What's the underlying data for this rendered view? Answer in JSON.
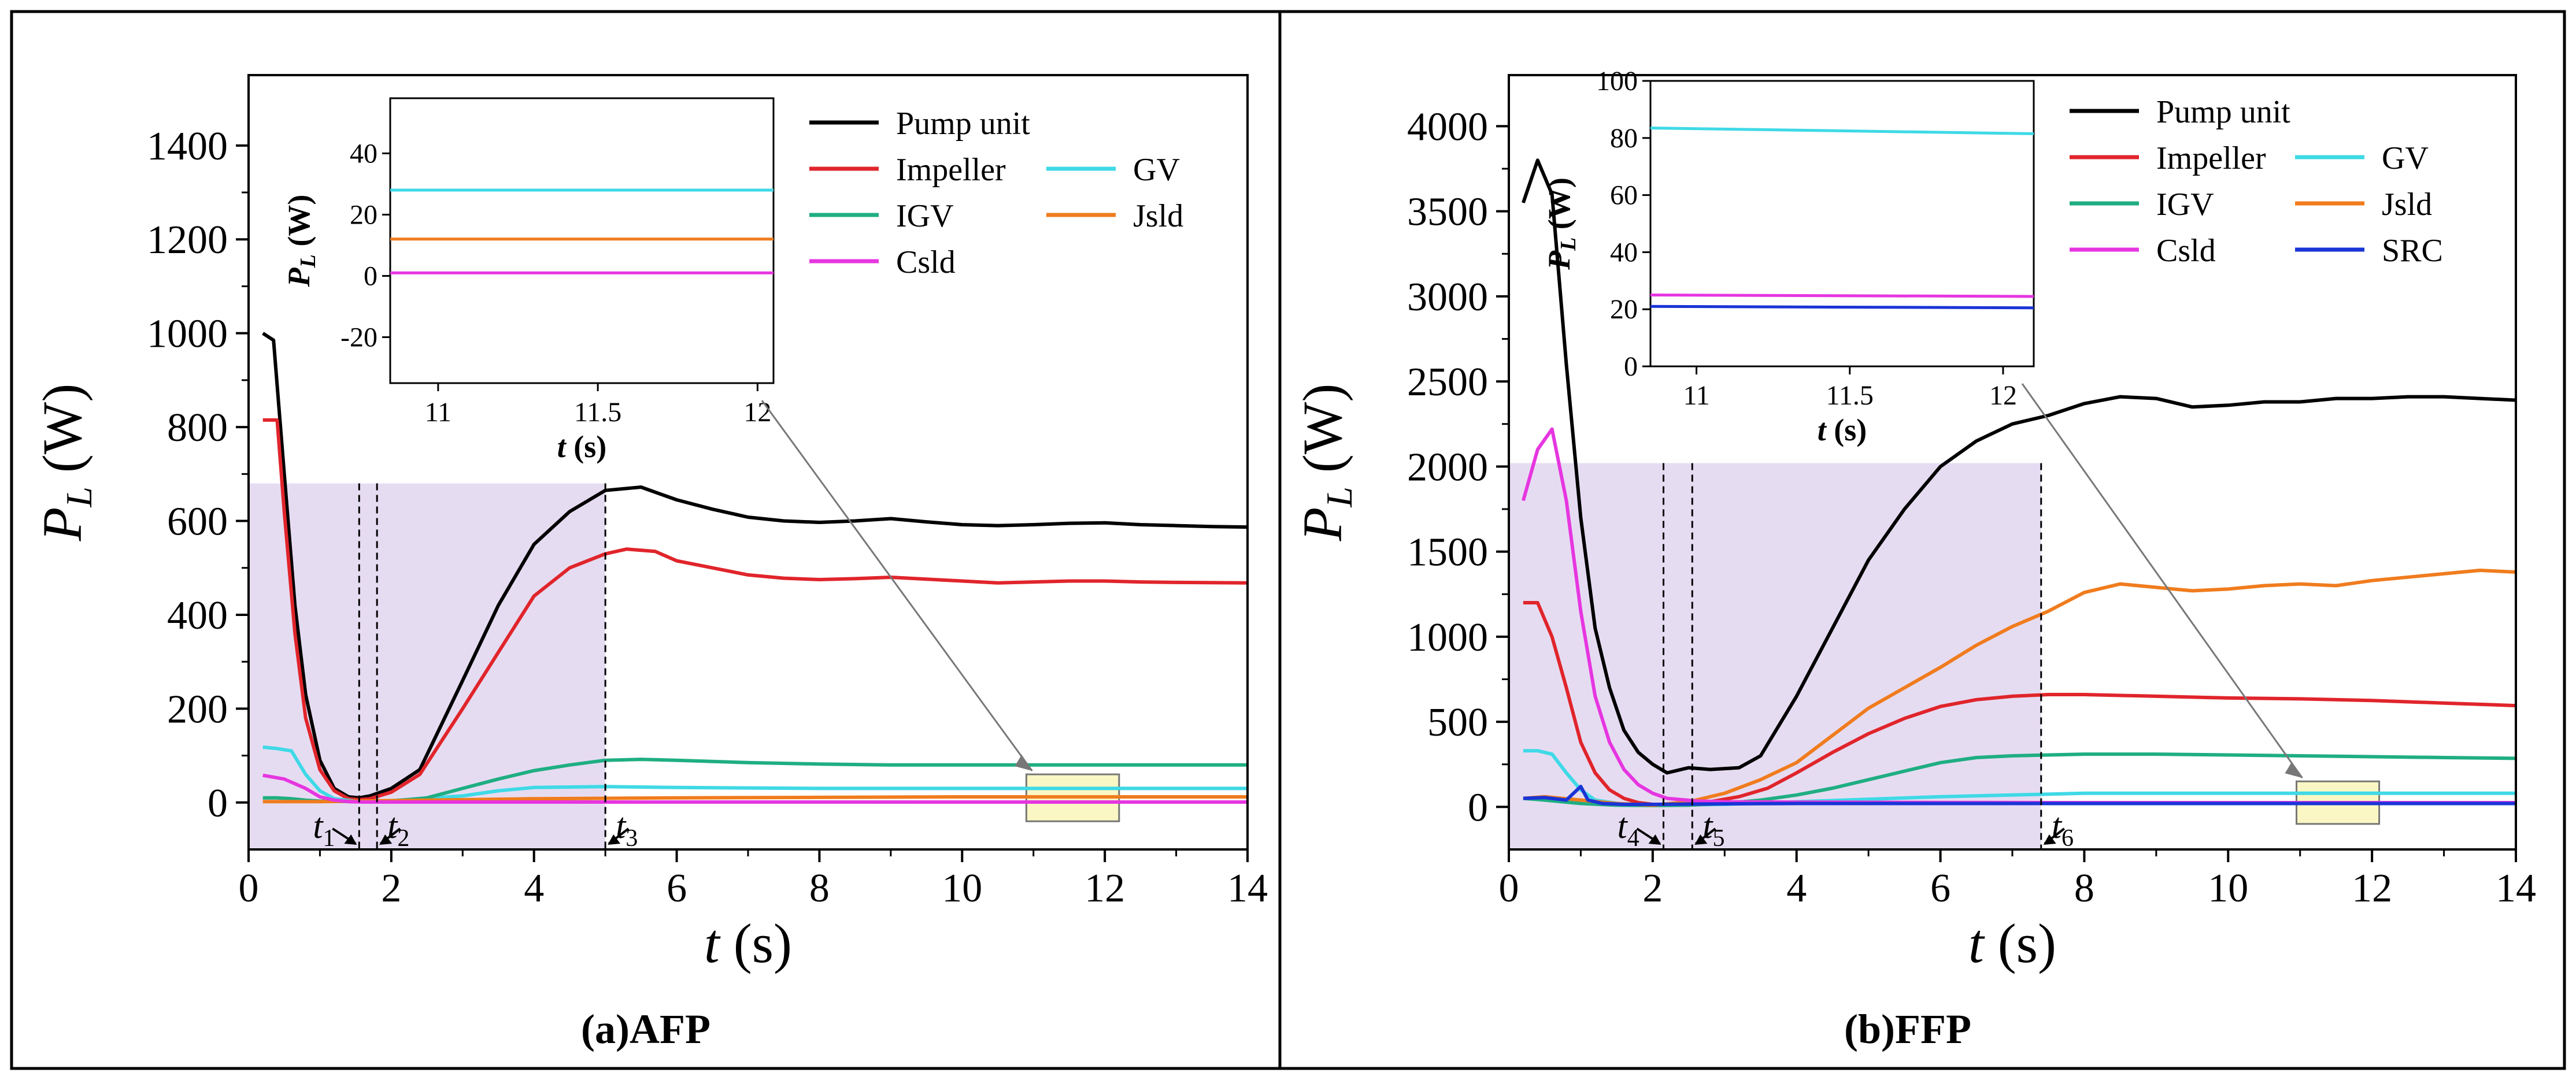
{
  "figure": {
    "panels": [
      "(a)AFP",
      "(b)FFP"
    ]
  },
  "colors": {
    "Pump unit": "#000000",
    "Impeller": "#e0252b",
    "GV": "#3fd9e6",
    "IGV": "#1fae82",
    "Jsld": "#f07c1e",
    "Csld": "#e636e0",
    "SRC": "#1a34d6",
    "shade": "#e6dcf2",
    "zoom_box": "#faf7c4"
  },
  "chart_data": [
    {
      "type": "line",
      "caption": "(a)AFP",
      "xlabel": "t (s)",
      "ylabel": "P_L (W)",
      "xlim": [
        0,
        14
      ],
      "ylim": [
        -100,
        1550
      ],
      "xticks": [
        0,
        2,
        4,
        6,
        8,
        10,
        12,
        14
      ],
      "yticks": [
        0,
        200,
        400,
        600,
        800,
        1000,
        1200,
        1400
      ],
      "shaded_region": {
        "x": [
          0,
          5.0
        ],
        "y": [
          -100,
          680
        ]
      },
      "markers": [
        {
          "name": "t",
          "sub": "1",
          "x": 1.55
        },
        {
          "name": "t",
          "sub": "2",
          "x": 1.8
        },
        {
          "name": "t",
          "sub": "3",
          "x": 5.0
        }
      ],
      "zoom_box": {
        "x": [
          10.9,
          12.2
        ],
        "y": [
          -40,
          60
        ]
      },
      "series": [
        {
          "name": "Pump unit",
          "x": [
            0.2,
            0.35,
            0.5,
            0.65,
            0.8,
            1.0,
            1.2,
            1.4,
            1.55,
            1.7,
            2.0,
            2.4,
            3.0,
            3.5,
            4.0,
            4.5,
            5.0,
            5.5,
            6.0,
            6.5,
            7.0,
            7.5,
            8.0,
            8.5,
            9.0,
            9.5,
            10.0,
            10.5,
            11.0,
            11.5,
            12.0,
            12.5,
            13.0,
            13.5,
            14.0
          ],
          "y": [
            1000,
            985,
            700,
            420,
            230,
            90,
            30,
            12,
            10,
            14,
            30,
            70,
            260,
            420,
            550,
            620,
            665,
            672,
            645,
            625,
            608,
            600,
            597,
            600,
            605,
            598,
            592,
            590,
            592,
            595,
            596,
            592,
            590,
            588,
            587
          ]
        },
        {
          "name": "Impeller",
          "x": [
            0.2,
            0.4,
            0.5,
            0.65,
            0.8,
            1.0,
            1.2,
            1.4,
            1.55,
            1.7,
            2.0,
            2.4,
            3.0,
            3.5,
            4.0,
            4.5,
            5.0,
            5.3,
            5.7,
            6.0,
            6.5,
            7.0,
            7.5,
            8.0,
            8.5,
            9.0,
            9.5,
            10.0,
            10.5,
            11.0,
            11.5,
            12.0,
            12.5,
            13.0,
            14.0
          ],
          "y": [
            815,
            815,
            620,
            360,
            180,
            70,
            25,
            8,
            6,
            8,
            22,
            60,
            200,
            320,
            440,
            500,
            530,
            540,
            535,
            515,
            500,
            485,
            478,
            475,
            477,
            480,
            476,
            472,
            468,
            470,
            472,
            472,
            470,
            469,
            468
          ]
        },
        {
          "name": "GV",
          "x": [
            0.2,
            0.4,
            0.6,
            0.8,
            1.0,
            1.2,
            1.5,
            1.8,
            2.2,
            3.0,
            3.5,
            4.0,
            5.0,
            6.0,
            8.0,
            10.0,
            12.0,
            14.0
          ],
          "y": [
            118,
            115,
            110,
            60,
            25,
            8,
            3,
            2,
            6,
            14,
            25,
            32,
            34,
            32,
            30,
            30,
            30,
            30
          ]
        },
        {
          "name": "IGV",
          "x": [
            0.2,
            0.4,
            0.6,
            0.8,
            1.0,
            1.5,
            2.0,
            2.5,
            3.0,
            3.5,
            4.0,
            4.5,
            5.0,
            5.5,
            6.0,
            7.0,
            8.0,
            9.0,
            10.0,
            11.0,
            12.0,
            13.0,
            14.0
          ],
          "y": [
            10,
            10,
            8,
            5,
            3,
            2,
            3,
            10,
            30,
            50,
            68,
            80,
            90,
            92,
            90,
            85,
            82,
            80,
            80,
            80,
            80,
            80,
            80
          ]
        },
        {
          "name": "Jsld",
          "x": [
            0.2,
            1.0,
            2.0,
            4.0,
            6.0,
            8.0,
            10.0,
            12.0,
            14.0
          ],
          "y": [
            2,
            2,
            4,
            8,
            10,
            11,
            12,
            12,
            12
          ]
        },
        {
          "name": "Csld",
          "x": [
            0.2,
            0.5,
            0.8,
            1.0,
            1.2,
            1.4,
            1.6,
            2.0,
            4.0,
            6.0,
            8.0,
            10.0,
            12.0,
            14.0
          ],
          "y": [
            58,
            50,
            30,
            12,
            5,
            2,
            1,
            1,
            1,
            1,
            1,
            1,
            1,
            1
          ]
        }
      ],
      "legend": [
        [
          "Pump unit"
        ],
        [
          "Impeller",
          "GV"
        ],
        [
          "IGV",
          "Jsld"
        ],
        [
          "Csld"
        ]
      ],
      "inset": {
        "xlabel": "t (s)",
        "ylabel": "P_L (W)",
        "xlim": [
          10.85,
          12.05
        ],
        "ylim": [
          -35,
          58
        ],
        "xticks": [
          11.0,
          11.5,
          12.0
        ],
        "yticks": [
          -20,
          0,
          20,
          40
        ],
        "series": [
          {
            "name": "GV",
            "x": [
              10.85,
              12.05
            ],
            "y": [
              28,
              28
            ]
          },
          {
            "name": "Jsld",
            "x": [
              10.85,
              12.05
            ],
            "y": [
              12,
              12
            ]
          },
          {
            "name": "Csld",
            "x": [
              10.85,
              12.05
            ],
            "y": [
              1,
              1
            ]
          }
        ]
      }
    },
    {
      "type": "line",
      "caption": "(b)FFP",
      "xlabel": "t (s)",
      "ylabel": "P_L (W)",
      "xlim": [
        0,
        14
      ],
      "ylim": [
        -250,
        4300
      ],
      "xticks": [
        0,
        2,
        4,
        6,
        8,
        10,
        12,
        14
      ],
      "yticks": [
        0,
        500,
        1000,
        1500,
        2000,
        2500,
        3000,
        3500,
        4000
      ],
      "shaded_region": {
        "x": [
          0,
          7.4
        ],
        "y": [
          -250,
          2020
        ]
      },
      "markers": [
        {
          "name": "t",
          "sub": "4",
          "x": 2.15
        },
        {
          "name": "t",
          "sub": "5",
          "x": 2.55
        },
        {
          "name": "t",
          "sub": "6",
          "x": 7.4
        }
      ],
      "zoom_box": {
        "x": [
          10.95,
          12.1
        ],
        "y": [
          -100,
          150
        ]
      },
      "series": [
        {
          "name": "Pump unit",
          "x": [
            0.2,
            0.4,
            0.6,
            0.8,
            1.0,
            1.2,
            1.4,
            1.6,
            1.8,
            2.0,
            2.2,
            2.5,
            2.8,
            3.2,
            3.5,
            4.0,
            4.5,
            5.0,
            5.5,
            6.0,
            6.5,
            7.0,
            7.5,
            8.0,
            8.5,
            9.0,
            9.5,
            10.0,
            10.5,
            11.0,
            11.5,
            12.0,
            12.5,
            13.0,
            13.5,
            14.0
          ],
          "y": [
            3550,
            3800,
            3600,
            2600,
            1700,
            1050,
            700,
            450,
            320,
            250,
            200,
            230,
            220,
            230,
            300,
            650,
            1050,
            1450,
            1750,
            2000,
            2150,
            2250,
            2300,
            2370,
            2410,
            2400,
            2350,
            2360,
            2380,
            2380,
            2400,
            2400,
            2410,
            2410,
            2400,
            2390
          ]
        },
        {
          "name": "Impeller",
          "x": [
            0.2,
            0.4,
            0.6,
            0.8,
            1.0,
            1.2,
            1.4,
            1.6,
            1.8,
            2.0,
            2.2,
            2.5,
            2.8,
            3.2,
            3.6,
            4.0,
            4.5,
            5.0,
            5.5,
            6.0,
            6.5,
            7.0,
            7.5,
            8.0,
            9.0,
            10.0,
            11.0,
            12.0,
            13.0,
            14.0
          ],
          "y": [
            1200,
            1200,
            1000,
            700,
            380,
            200,
            100,
            50,
            25,
            15,
            10,
            15,
            30,
            60,
            110,
            200,
            320,
            430,
            520,
            590,
            630,
            650,
            660,
            660,
            650,
            640,
            635,
            625,
            610,
            595
          ]
        },
        {
          "name": "GV",
          "x": [
            0.2,
            0.4,
            0.6,
            0.8,
            1.0,
            1.2,
            1.6,
            2.0,
            3.0,
            4.0,
            6.0,
            8.0,
            10.0,
            12.0,
            14.0
          ],
          "y": [
            330,
            330,
            310,
            200,
            100,
            40,
            15,
            10,
            15,
            30,
            60,
            80,
            80,
            80,
            80
          ]
        },
        {
          "name": "IGV",
          "x": [
            0.2,
            0.5,
            1.0,
            1.5,
            2.0,
            2.5,
            3.0,
            3.5,
            4.0,
            4.5,
            5.0,
            5.5,
            6.0,
            6.5,
            7.0,
            7.5,
            8.0,
            9.0,
            10.0,
            11.0,
            12.0,
            13.0,
            14.0
          ],
          "y": [
            50,
            40,
            20,
            10,
            8,
            10,
            20,
            40,
            70,
            110,
            160,
            210,
            260,
            290,
            300,
            305,
            310,
            310,
            305,
            300,
            295,
            290,
            285
          ]
        },
        {
          "name": "Jsld",
          "x": [
            0.2,
            0.5,
            1.0,
            1.5,
            2.0,
            2.5,
            3.0,
            3.5,
            4.0,
            4.5,
            5.0,
            5.5,
            6.0,
            6.5,
            7.0,
            7.5,
            8.0,
            8.5,
            9.0,
            9.5,
            10.0,
            10.5,
            11.0,
            11.5,
            12.0,
            12.5,
            13.0,
            13.5,
            14.0
          ],
          "y": [
            50,
            60,
            40,
            20,
            10,
            30,
            80,
            160,
            260,
            420,
            580,
            700,
            820,
            950,
            1060,
            1150,
            1260,
            1310,
            1290,
            1270,
            1280,
            1300,
            1310,
            1300,
            1330,
            1350,
            1370,
            1390,
            1380
          ]
        },
        {
          "name": "Csld",
          "x": [
            0.2,
            0.4,
            0.6,
            0.8,
            1.0,
            1.2,
            1.4,
            1.6,
            1.8,
            2.0,
            2.2,
            2.6,
            3.0,
            4.0,
            6.0,
            8.0,
            10.0,
            12.0,
            14.0
          ],
          "y": [
            1800,
            2100,
            2220,
            1800,
            1150,
            650,
            380,
            220,
            130,
            80,
            50,
            35,
            30,
            28,
            26,
            25,
            25,
            25,
            25
          ]
        },
        {
          "name": "SRC",
          "x": [
            0.2,
            0.5,
            0.8,
            1.0,
            1.1,
            1.3,
            1.6,
            2.0,
            3.0,
            4.0,
            6.0,
            8.0,
            10.0,
            12.0,
            14.0
          ],
          "y": [
            50,
            55,
            40,
            120,
            40,
            20,
            15,
            15,
            18,
            20,
            20,
            20,
            20,
            20,
            20
          ]
        }
      ],
      "legend": [
        [
          "Pump unit"
        ],
        [
          "Impeller",
          "GV"
        ],
        [
          "IGV",
          "Jsld"
        ],
        [
          "Csld",
          "SRC"
        ]
      ],
      "inset": {
        "xlabel": "t (s)",
        "ylabel": "P_L (W)",
        "xlim": [
          10.85,
          12.1
        ],
        "ylim": [
          0,
          100
        ],
        "xticks": [
          11.0,
          11.5,
          12.0
        ],
        "yticks": [
          0,
          20,
          40,
          60,
          80,
          100
        ],
        "series": [
          {
            "name": "GV",
            "x": [
              10.85,
              12.1
            ],
            "y": [
              83.5,
              81.5
            ]
          },
          {
            "name": "Csld",
            "x": [
              10.85,
              12.1
            ],
            "y": [
              25,
              24.5
            ]
          },
          {
            "name": "SRC",
            "x": [
              10.85,
              12.1
            ],
            "y": [
              21,
              20.5
            ]
          }
        ]
      }
    }
  ]
}
